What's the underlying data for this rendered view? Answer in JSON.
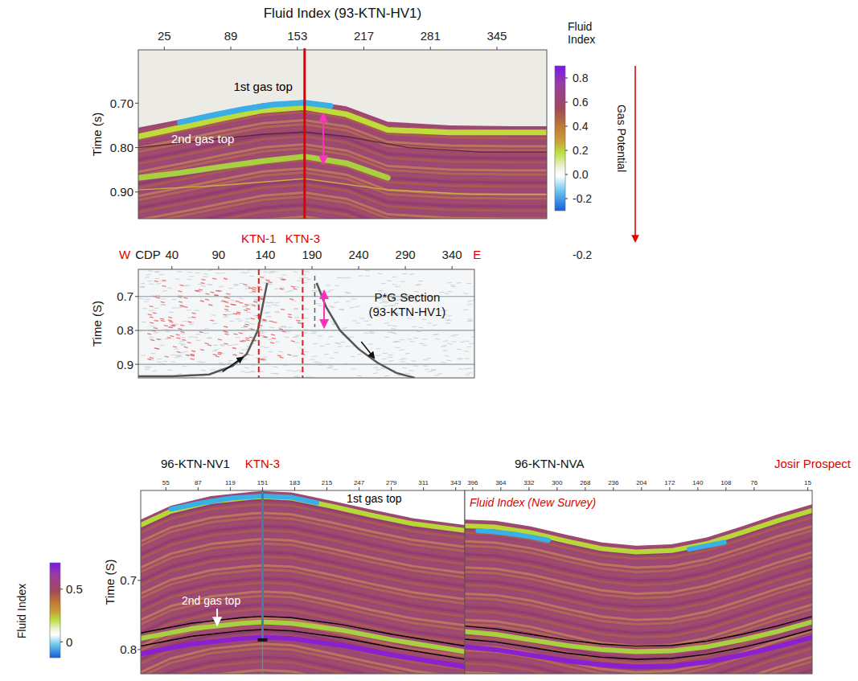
{
  "chart_data": [
    {
      "type": "seismic_section",
      "title": "Fluid Index (93-KTN-HV1)",
      "y_label": "Time (s)",
      "xlim": [
        0,
        393
      ],
      "xticks": [
        25,
        89,
        153,
        217,
        281,
        345
      ],
      "ylim": [
        0.58,
        0.96
      ],
      "yticks": [
        {
          "value": 0.7,
          "label": "0.70"
        },
        {
          "value": 0.8,
          "label": "0.80"
        },
        {
          "value": 0.9,
          "label": "0.90"
        }
      ],
      "colorbar": {
        "title": "Fluid Index",
        "side_label": "Gas Potential",
        "range": [
          -0.3,
          0.9
        ],
        "ticks": [
          0.8,
          0.6,
          0.4,
          0.2,
          {
            "value": 0,
            "label": "0.0"
          },
          -0.2
        ]
      },
      "data_top": {
        "x": [
          0,
          40,
          80,
          120,
          160,
          200,
          240,
          300,
          360,
          393
        ],
        "values": [
          0.755,
          0.737,
          0.718,
          0.7,
          0.693,
          0.707,
          0.742,
          0.75,
          0.752,
          0.752
        ]
      },
      "horizons": [
        {
          "x": [
            0,
            40,
            80,
            120,
            160,
            200,
            240,
            300,
            360,
            393
          ],
          "values": [
            0.775,
            0.755,
            0.735,
            0.716,
            0.709,
            0.725,
            0.76,
            0.766,
            0.766,
            0.766
          ],
          "color": "#c0dc38",
          "line_style": "band"
        },
        {
          "x": [
            40,
            70,
            100,
            130,
            160,
            185
          ],
          "values": [
            0.743,
            0.728,
            0.714,
            0.703,
            0.699,
            0.706
          ],
          "color": "#3aaee6",
          "line_style": "band"
        },
        {
          "x": [
            0,
            40,
            80,
            120,
            160,
            200,
            240
          ],
          "values": [
            0.868,
            0.857,
            0.843,
            0.83,
            0.82,
            0.835,
            0.868
          ],
          "color": "#a8d040",
          "line_style": "band"
        },
        {
          "x": [
            0,
            80,
            160,
            240,
            320,
            393
          ],
          "values": [
            0.895,
            0.885,
            0.87,
            0.895,
            0.905,
            0.905
          ],
          "color": "#c8b040",
          "line_style": "solid"
        },
        {
          "x": [
            0,
            60,
            120,
            160,
            200,
            260,
            330,
            393
          ],
          "values": [
            0.8,
            0.785,
            0.77,
            0.765,
            0.775,
            0.8,
            0.81,
            0.81
          ],
          "color": "#5a2a3a",
          "line_style": "solid"
        }
      ],
      "well_x": 160,
      "gas_interval": {
        "x": 178,
        "values": [
          0.725,
          0.835
        ]
      },
      "annotations": [
        {
          "text": "1st gas top",
          "x": 120,
          "y": 0.672,
          "color": "#000000"
        },
        {
          "text": "2nd gas top",
          "x": 62,
          "y": 0.79,
          "color": "#ffffff"
        }
      ]
    },
    {
      "type": "seismic_section",
      "title": [
        "P*G Section",
        "(93-KTN-HV1)"
      ],
      "x_label": "CDP",
      "direction_labels": [
        "W",
        "E"
      ],
      "y_label": "Time (S)",
      "xlim": [
        4,
        364
      ],
      "xticks": [
        40,
        90,
        140,
        190,
        240,
        290,
        340
      ],
      "ylim": [
        0.62,
        0.94
      ],
      "yticks": [
        0.7,
        0.8,
        0.9
      ],
      "grid": true,
      "wells": [
        {
          "name": "KTN-1",
          "x": 133
        },
        {
          "name": "KTN-3",
          "x": 180
        }
      ],
      "dashed_line_x": 193,
      "gas_interval": {
        "x": 203,
        "values": [
          0.685,
          0.79
        ]
      },
      "curves": [
        {
          "x": [
            4,
            40,
            80,
            105,
            120,
            132,
            142
          ],
          "values": [
            0.935,
            0.935,
            0.93,
            0.905,
            0.87,
            0.8,
            0.66
          ]
        },
        {
          "x": [
            195,
            205,
            220,
            240,
            260,
            280,
            300
          ],
          "values": [
            0.66,
            0.73,
            0.8,
            0.855,
            0.895,
            0.925,
            0.94
          ]
        }
      ],
      "extra_label": -0.2
    },
    {
      "type": "seismic_section",
      "title": "96-KTN-NV1",
      "y_label": "Time (S)",
      "xlim": [
        30,
        352
      ],
      "xticks": [
        55,
        87,
        119,
        151,
        183,
        215,
        247,
        279,
        311,
        343
      ],
      "ylim": [
        0.57,
        0.835
      ],
      "yticks": [
        0.7,
        0.8
      ],
      "colorbar": {
        "title": "Fluid Index",
        "range": [
          -0.15,
          0.75
        ],
        "ticks": [
          0.5,
          0
        ]
      },
      "well": {
        "name": "KTN-3",
        "x": 151,
        "bottom": 0.786
      },
      "data_top": {
        "x": [
          30,
          60,
          100,
          140,
          151,
          180,
          220,
          260,
          300,
          352
        ],
        "values": [
          0.612,
          0.592,
          0.578,
          0.572,
          0.571,
          0.573,
          0.585,
          0.598,
          0.61,
          0.62
        ]
      },
      "horizons": [
        {
          "x": [
            30,
            60,
            100,
            140,
            151,
            180,
            220,
            260,
            300,
            352
          ],
          "values": [
            0.62,
            0.6,
            0.586,
            0.58,
            0.579,
            0.581,
            0.593,
            0.606,
            0.618,
            0.628
          ],
          "color": "#b8d838",
          "line_style": "band"
        },
        {
          "x": [
            60,
            90,
            120,
            151,
            180,
            205
          ],
          "values": [
            0.597,
            0.588,
            0.581,
            0.578,
            0.58,
            0.588
          ],
          "color": "#38b0e8",
          "line_style": "band"
        },
        {
          "x": [
            30,
            80,
            130,
            151,
            180,
            230,
            280,
            352
          ],
          "values": [
            0.776,
            0.762,
            0.754,
            0.752,
            0.754,
            0.764,
            0.778,
            0.795
          ],
          "color": "#000000",
          "line_style": "solid"
        },
        {
          "x": [
            30,
            80,
            130,
            151,
            180,
            230,
            280,
            352
          ],
          "values": [
            0.784,
            0.77,
            0.762,
            0.76,
            0.762,
            0.772,
            0.786,
            0.803
          ],
          "color": "#a8d040",
          "line_style": "band"
        },
        {
          "x": [
            30,
            80,
            130,
            151,
            180,
            230,
            280,
            352
          ],
          "values": [
            0.795,
            0.781,
            0.773,
            0.771,
            0.773,
            0.783,
            0.797,
            0.814
          ],
          "color": "#000000",
          "line_style": "solid"
        },
        {
          "x": [
            30,
            80,
            130,
            151,
            180,
            230,
            280,
            352
          ],
          "values": [
            0.806,
            0.792,
            0.784,
            0.782,
            0.784,
            0.794,
            0.808,
            0.825
          ],
          "color": "#8a20d0",
          "line_style": "band"
        }
      ],
      "annotations": [
        {
          "text": "1st gas top",
          "x": 262,
          "y": 0.588,
          "color": "#000000"
        },
        {
          "text": "2nd gas top",
          "x": 100,
          "y": 0.735,
          "color": "#ffffff"
        }
      ]
    },
    {
      "type": "seismic_section",
      "title": "96-KTN-NVA",
      "subtitle": "Fluid Index (New Survey)",
      "prospect": "Josir Prospect",
      "xlim": [
        405,
        10
      ],
      "xticks": [
        396,
        364,
        332,
        300,
        268,
        236,
        204,
        172,
        140,
        108,
        76,
        15
      ],
      "ylim": [
        0.57,
        0.835
      ],
      "data_top": {
        "x": [
          405,
          370,
          330,
          290,
          250,
          210,
          170,
          130,
          90,
          50,
          10
        ],
        "values": [
          0.612,
          0.614,
          0.622,
          0.634,
          0.645,
          0.65,
          0.648,
          0.638,
          0.622,
          0.605,
          0.59
        ]
      },
      "horizons": [
        {
          "x": [
            405,
            370,
            330,
            290,
            250,
            210,
            170,
            130,
            90,
            50,
            10
          ],
          "values": [
            0.621,
            0.623,
            0.631,
            0.643,
            0.654,
            0.659,
            0.657,
            0.647,
            0.631,
            0.614,
            0.599
          ],
          "color": "#b8d838",
          "line_style": "band"
        },
        {
          "x": [
            390,
            370,
            350,
            330,
            310
          ],
          "values": [
            0.628,
            0.63,
            0.633,
            0.637,
            0.642
          ],
          "color": "#38b0e8",
          "line_style": "band"
        },
        {
          "x": [
            150,
            130,
            110
          ],
          "values": [
            0.655,
            0.65,
            0.645
          ],
          "color": "#38b0e8",
          "line_style": "band"
        },
        {
          "x": [
            405,
            370,
            330,
            290,
            250,
            210,
            170,
            130,
            90,
            50,
            10
          ],
          "values": [
            0.766,
            0.77,
            0.778,
            0.786,
            0.792,
            0.795,
            0.794,
            0.788,
            0.778,
            0.766,
            0.752
          ],
          "color": "#000000",
          "line_style": "solid"
        },
        {
          "x": [
            405,
            370,
            330,
            290,
            250,
            210,
            170,
            130,
            90,
            50,
            10
          ],
          "values": [
            0.774,
            0.778,
            0.786,
            0.794,
            0.8,
            0.803,
            0.802,
            0.796,
            0.786,
            0.774,
            0.76
          ],
          "color": "#a8d040",
          "line_style": "band"
        },
        {
          "x": [
            405,
            370,
            330,
            290,
            250,
            210,
            170,
            130,
            90,
            50,
            10
          ],
          "values": [
            0.785,
            0.789,
            0.797,
            0.805,
            0.811,
            0.814,
            0.813,
            0.807,
            0.797,
            0.785,
            0.771
          ],
          "color": "#000000",
          "line_style": "solid"
        },
        {
          "x": [
            405,
            370,
            330,
            290,
            250,
            210,
            170,
            130,
            90,
            50,
            10
          ],
          "values": [
            0.796,
            0.8,
            0.808,
            0.816,
            0.822,
            0.825,
            0.824,
            0.818,
            0.808,
            0.796,
            0.782
          ],
          "color": "#8a20d0",
          "line_style": "band"
        }
      ]
    }
  ]
}
